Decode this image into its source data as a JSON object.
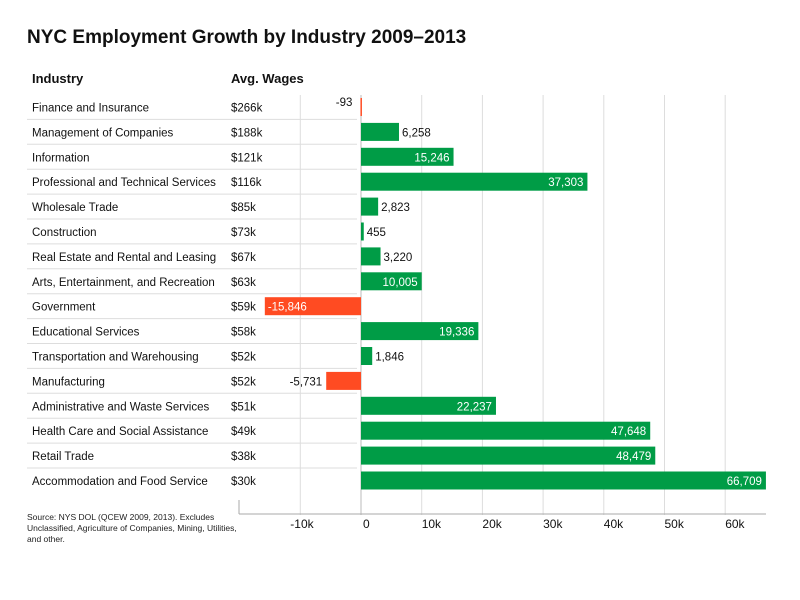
{
  "chart_data": {
    "type": "bar",
    "orientation": "horizontal",
    "title": "NYC Employment Growth by Industry 2009–2013",
    "column_headers": {
      "industry": "Industry",
      "wages": "Avg. Wages"
    },
    "categories": [
      "Finance and Insurance",
      "Management of Companies",
      "Information",
      "Professional and Technical Services",
      "Wholesale Trade",
      "Construction",
      "Real Estate and Rental and Leasing",
      "Arts, Entertainment, and Recreation",
      "Government",
      "Educational Services",
      "Transportation and Warehousing",
      "Manufacturing",
      "Administrative and Waste Services",
      "Health Care and Social Assistance",
      "Retail Trade",
      "Accommodation and Food Service"
    ],
    "wages": [
      "$266k",
      "$188k",
      "$121k",
      "$116k",
      "$85k",
      "$73k",
      "$67k",
      "$63k",
      "$59k",
      "$58k",
      "$52k",
      "$52k",
      "$51k",
      "$49k",
      "$38k",
      "$30k"
    ],
    "values": [
      -93,
      6258,
      15246,
      37303,
      2823,
      455,
      3220,
      10005,
      -15846,
      19336,
      1846,
      -5731,
      22237,
      47648,
      48479,
      66709
    ],
    "value_labels": [
      "-93",
      "6,258",
      "15,246",
      "37,303",
      "2,823",
      "455",
      "3,220",
      "10,005",
      "-15,846",
      "19,336",
      "1,846",
      "-5,731",
      "22,237",
      "47,648",
      "48,479",
      "66,709"
    ],
    "xlim": [
      -20000,
      66709
    ],
    "x_ticks": [
      -10000,
      0,
      10000,
      20000,
      30000,
      40000,
      50000,
      60000
    ],
    "x_tick_labels": [
      "-10k",
      "0",
      "10k",
      "20k",
      "30k",
      "40k",
      "50k",
      "60k"
    ],
    "grid": true,
    "colors": {
      "positive": "#009c46",
      "negative": "#ff4b22"
    },
    "source": "Source: NYS DOL (QCEW 2009, 2013). Excludes Unclassified, Agriculture of Companies, Mining, Utilities, and other."
  }
}
